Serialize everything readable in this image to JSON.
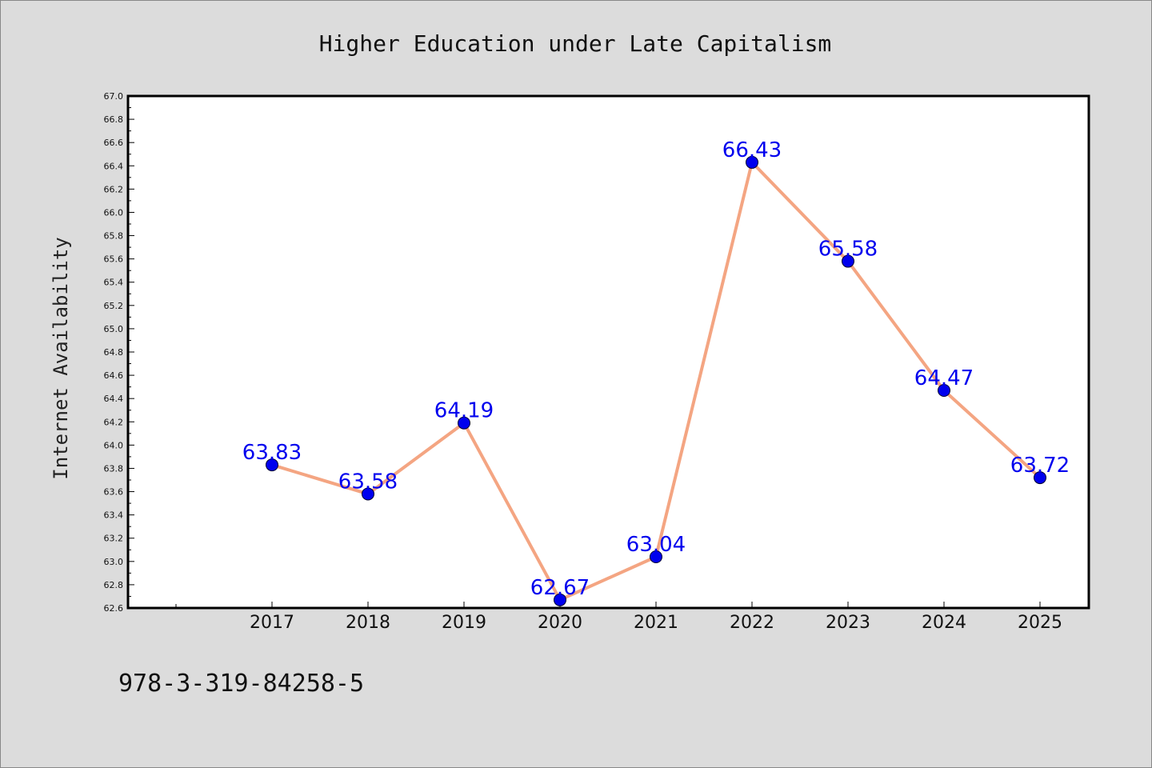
{
  "isbn": "978-3-319-84258-5",
  "colors": {
    "background": "#dcdcdc",
    "plot_background": "#ffffff",
    "line": "#f4a582",
    "marker": "#0000ee",
    "data_label": "#0000ee"
  },
  "chart_data": {
    "type": "line",
    "title": "Higher Education under Late Capitalism",
    "xlabel": "",
    "ylabel": "Internet Availability",
    "categories": [
      "2017",
      "2018",
      "2019",
      "2020",
      "2021",
      "2022",
      "2023",
      "2024",
      "2025"
    ],
    "series": [
      {
        "values": [
          63.83,
          63.58,
          64.19,
          62.67,
          63.04,
          66.43,
          65.58,
          64.47,
          63.72
        ]
      }
    ],
    "data_labels": [
      "63.83",
      "63.58",
      "64.19",
      "62.67",
      "63.04",
      "66.43",
      "65.58",
      "64.47",
      "63.72"
    ],
    "ylim": [
      62.6,
      67.0
    ],
    "yticks": [
      "62.6",
      "62.8",
      "63.0",
      "63.2",
      "63.4",
      "63.6",
      "63.8",
      "64.0",
      "64.2",
      "64.4",
      "64.6",
      "64.8",
      "65.0",
      "65.2",
      "65.4",
      "65.6",
      "65.8",
      "66.0",
      "66.2",
      "66.4",
      "66.6",
      "66.8",
      "67.0"
    ],
    "grid": false,
    "legend": false
  }
}
